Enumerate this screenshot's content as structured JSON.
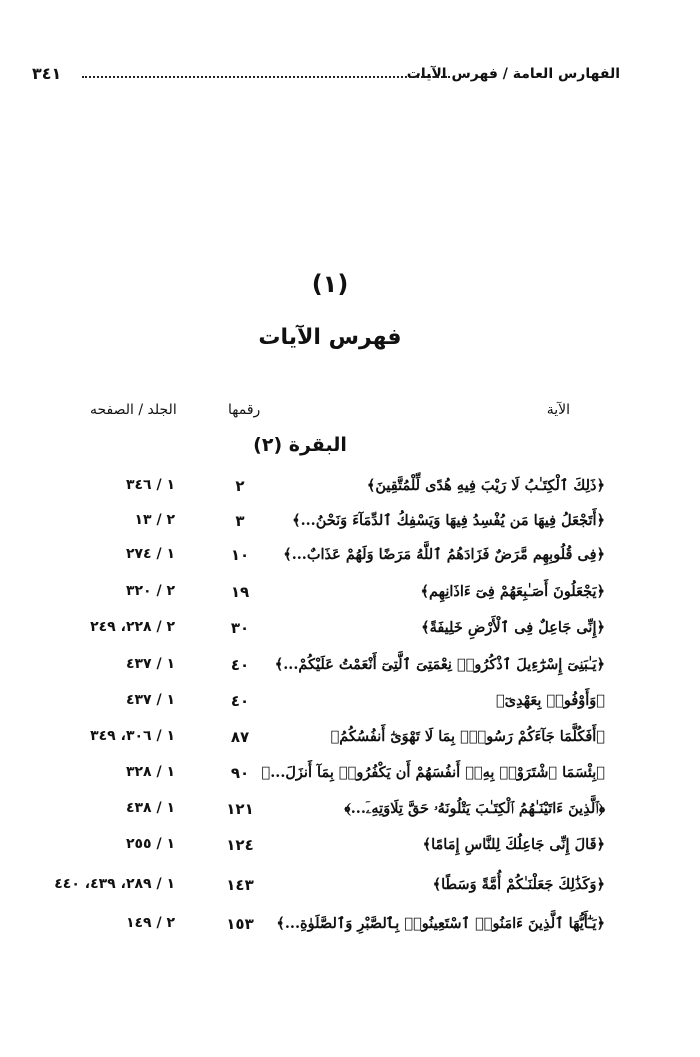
{
  "header": {
    "title": "الفهارس العامة / فهرس الآيات",
    "page_number": "٣٤١"
  },
  "index_number": "(١)",
  "index_title": "فهرس الآيات",
  "columns": {
    "verse": "الآية",
    "number": "رقمها",
    "volume_page": "الجلد / الصفحه"
  },
  "surah": "البقرة (٢)",
  "rows": [
    {
      "verse": "﴿ذَلِكَ ٱلْكِتَـٰبُ لَا رَيْبَ فِيهِ هُدًى لِّلْمُتَّقِينَ﴾",
      "number": "٢",
      "ref": "١ / ٣٤٦"
    },
    {
      "verse": "﴿أَتَجْعَلُ فِيهَا مَن يُفْسِدُ فِيهَا وَيَسْفِكُ ٱلدِّمَآءَ وَنَحْنُ...﴾",
      "number": "٣",
      "ref": "٢ / ١٣"
    },
    {
      "verse": "﴿فِى قُلُوبِهِم مَّرَضٌ فَزَادَهُمُ ٱللَّهُ مَرَضًا وَلَهُمْ عَذَابٌ...﴾",
      "number": "١٠",
      "ref": "١ / ٢٧٤"
    },
    {
      "verse": "﴿يَجْعَلُونَ أَصَـٰبِعَهُمْ فِىٓ ءَاذَانِهِم﴾",
      "number": "١٩",
      "ref": "٢ / ٣٢٠"
    },
    {
      "verse": "﴿إِنِّى جَاعِلٌ فِى ٱلْأَرْضِ خَلِيفَةً﴾",
      "number": "٣٠",
      "ref": "٢ / ٢٢٨، ٢٤٩"
    },
    {
      "verse": "﴿يَـٰبَنِىٓ إِسْرَٰٓءِيلَ ٱذْكُرُوا۟ نِعْمَتِىَ ٱلَّتِىٓ أَنْعَمْتُ عَلَيْكُمْ...﴾",
      "number": "٤٠",
      "ref": "١ / ٤٣٧"
    },
    {
      "verse": "﴿وَأَوْفُوا۟ بِعَهْدِىٓ﴾",
      "number": "٤٠",
      "ref": "١ / ٤٣٧"
    },
    {
      "verse": "﴿أَفَكُلَّمَا جَآءَكُمْ رَسُولٌۢ بِمَا لَا تَهْوَىٰٓ أَنفُسُكُمُ﴾",
      "number": "٨٧",
      "ref": "١ / ٣٠٦، ٣٤٩"
    },
    {
      "verse": "﴿بِئْسَمَا ٱشْتَرَوْا۟ بِهِۦٓ أَنفُسَهُمْ أَن يَكْفُرُوا۟ بِمَآ أَنزَلَ...﴾",
      "number": "٩٠",
      "ref": "١ / ٣٢٨"
    },
    {
      "verse": "﴿ٱلَّذِينَ ءَاتَيْنَـٰهُمُ ٱلْكِتَـٰبَ يَتْلُونَهُۥ حَقَّ تِلَاوَتِهِۦٓ...﴾",
      "number": "١٢١",
      "ref": "١ / ٤٣٨"
    },
    {
      "verse": "﴿قَالَ إِنِّى جَاعِلُكَ لِلنَّاسِ إِمَامًا﴾",
      "number": "١٢٤",
      "ref": "١ / ٢٥٥"
    },
    {
      "verse": "﴿وَكَذَٰلِكَ جَعَلْنَـٰكُمْ أُمَّةً وَسَطًا﴾",
      "number": "١٤٣",
      "ref": "١ / ٢٨٩، ٤٣٩، ٤٤٠"
    },
    {
      "verse": "﴿يَـٰٓأَيُّهَا ٱلَّذِينَ ءَامَنُوا۟ ٱسْتَعِينُوا۟ بِٱلصَّبْرِ وَٱلصَّلَوٰةِ...﴾",
      "number": "١٥٣",
      "ref": "٢ / ١٤٩"
    }
  ]
}
